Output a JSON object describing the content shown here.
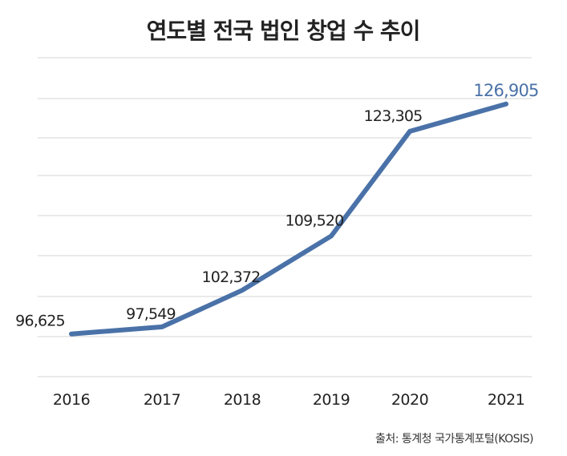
{
  "chart_data": {
    "type": "line",
    "title": "연도별 전국 법인 창업 수 추이",
    "categories": [
      "2016",
      "2017",
      "2018",
      "2019",
      "2020",
      "2021"
    ],
    "series": [
      {
        "name": "법인 창업 수",
        "values": [
          96625,
          97549,
          102372,
          109520,
          123305,
          126905
        ],
        "labels": [
          "96,625",
          "97,549",
          "102,372",
          "109,520",
          "123,305",
          "126,905"
        ]
      }
    ],
    "xlabel": "",
    "ylabel": "",
    "ylim": [
      91000,
      133000
    ],
    "grid": true,
    "line_color": "#4a72a8",
    "highlight_color": "#4a72a8",
    "source": "출처: 통계청 국가통계포털(KOSIS)"
  }
}
